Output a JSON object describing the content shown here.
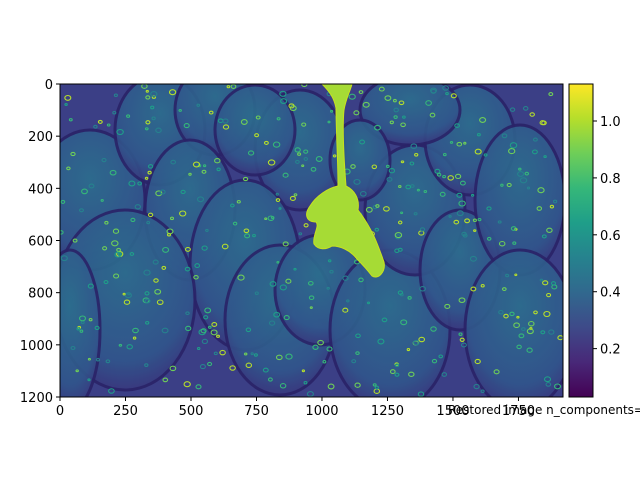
{
  "chart_data": {
    "type": "heatmap",
    "title": "",
    "xlabel": "",
    "ylabel": "",
    "caption": "Restored image n_components=",
    "xlim": [
      0,
      1920
    ],
    "ylim": [
      1200,
      0
    ],
    "x_ticks": [
      0,
      250,
      500,
      750,
      1000,
      1250,
      1500,
      1750
    ],
    "y_ticks": [
      0,
      200,
      400,
      600,
      800,
      1000,
      1200
    ],
    "colormap": "viridis",
    "colorbar": {
      "range": [
        0.03,
        1.13
      ],
      "ticks": [
        0.2,
        0.4,
        0.6,
        0.8,
        1.0
      ],
      "tick_labels": [
        "0.2",
        "0.4",
        "0.6",
        "0.8",
        "1.0"
      ],
      "colors": [
        "#440154",
        "#482878",
        "#3e4a89",
        "#31688e",
        "#26828e",
        "#1f9e89",
        "#35b779",
        "#6ece58",
        "#b5de2b",
        "#fde725"
      ]
    },
    "image_description_values": {
      "background_level": 0.2,
      "strawberry_level": 0.3,
      "seed_level": 0.75,
      "drip_level": 0.95
    },
    "grid": false
  }
}
